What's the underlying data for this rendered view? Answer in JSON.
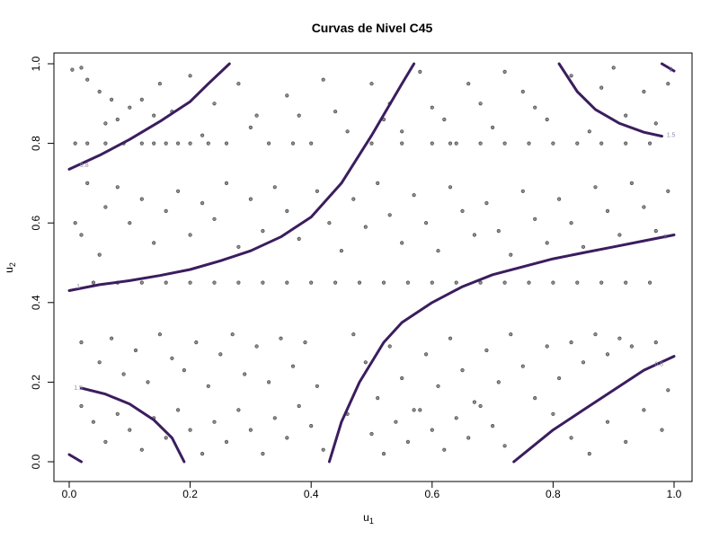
{
  "chart_data": {
    "type": "scatter",
    "title": "Curvas de Nivel C45",
    "xlabel": "u",
    "xlabel_sub": "1",
    "ylabel": "u",
    "ylabel_sub": "2",
    "xlim": [
      0,
      1
    ],
    "ylim": [
      0,
      1
    ],
    "xticks": [
      "0.0",
      "0.2",
      "0.4",
      "0.6",
      "0.8",
      "1.0"
    ],
    "yticks": [
      "0.0",
      "0.2",
      "0.4",
      "0.6",
      "0.8",
      "1.0"
    ],
    "grid": false,
    "point_color": "#333333",
    "contour_color": "#3b1d5e",
    "contours": [
      {
        "level": "1",
        "points": [
          [
            0,
            0.43
          ],
          [
            0.05,
            0.445
          ],
          [
            0.1,
            0.455
          ],
          [
            0.15,
            0.468
          ],
          [
            0.2,
            0.483
          ],
          [
            0.25,
            0.505
          ],
          [
            0.3,
            0.53
          ],
          [
            0.35,
            0.565
          ],
          [
            0.4,
            0.615
          ],
          [
            0.45,
            0.7
          ],
          [
            0.5,
            0.82
          ],
          [
            0.55,
            0.95
          ],
          [
            0.57,
            1.0
          ]
        ]
      },
      {
        "level": "1",
        "points": [
          [
            0.43,
            0
          ],
          [
            0.45,
            0.1
          ],
          [
            0.48,
            0.2
          ],
          [
            0.52,
            0.3
          ],
          [
            0.55,
            0.35
          ],
          [
            0.6,
            0.4
          ],
          [
            0.65,
            0.44
          ],
          [
            0.7,
            0.47
          ],
          [
            0.75,
            0.49
          ],
          [
            0.8,
            0.51
          ],
          [
            0.85,
            0.525
          ],
          [
            0.9,
            0.54
          ],
          [
            0.95,
            0.555
          ],
          [
            1.0,
            0.57
          ]
        ]
      },
      {
        "level": "0.8",
        "points": [
          [
            0,
            0.735
          ],
          [
            0.05,
            0.77
          ],
          [
            0.1,
            0.81
          ],
          [
            0.15,
            0.855
          ],
          [
            0.2,
            0.905
          ],
          [
            0.23,
            0.95
          ],
          [
            0.265,
            1.0
          ]
        ]
      },
      {
        "level": "0.8",
        "points": [
          [
            0.735,
            0
          ],
          [
            0.8,
            0.08
          ],
          [
            0.85,
            0.13
          ],
          [
            0.9,
            0.18
          ],
          [
            0.95,
            0.23
          ],
          [
            1.0,
            0.265
          ]
        ]
      },
      {
        "level": "1.5",
        "points": [
          [
            0.02,
            0.185
          ],
          [
            0.06,
            0.17
          ],
          [
            0.1,
            0.145
          ],
          [
            0.14,
            0.105
          ],
          [
            0.17,
            0.06
          ],
          [
            0.19,
            0.0
          ]
        ]
      },
      {
        "level": "1.5",
        "points": [
          [
            0.81,
            1.0
          ],
          [
            0.84,
            0.93
          ],
          [
            0.87,
            0.885
          ],
          [
            0.91,
            0.85
          ],
          [
            0.95,
            0.828
          ],
          [
            0.98,
            0.818
          ]
        ]
      },
      {
        "level": "2",
        "points": [
          [
            0,
            0.018
          ],
          [
            0.02,
            0.0
          ]
        ]
      },
      {
        "level": "2",
        "points": [
          [
            0.98,
            1.0
          ],
          [
            1.0,
            0.982
          ]
        ]
      }
    ],
    "contour_labels": [
      {
        "text": "0.8",
        "x": 0.025,
        "y": 0.745
      },
      {
        "text": "1",
        "x": 0.015,
        "y": 0.44
      },
      {
        "text": "1.5",
        "x": 0.015,
        "y": 0.185
      },
      {
        "text": "1",
        "x": 0.985,
        "y": 0.565
      },
      {
        "text": "0.8",
        "x": 0.975,
        "y": 0.245
      },
      {
        "text": "1.5",
        "x": 0.995,
        "y": 0.82
      },
      {
        "text": "2",
        "x": 0.995,
        "y": 0.985
      }
    ],
    "points": [
      [
        0.005,
        0.985
      ],
      [
        0.02,
        0.99
      ],
      [
        0.03,
        0.96
      ],
      [
        0.05,
        0.93
      ],
      [
        0.06,
        0.85
      ],
      [
        0.07,
        0.91
      ],
      [
        0.08,
        0.86
      ],
      [
        0.1,
        0.89
      ],
      [
        0.12,
        0.91
      ],
      [
        0.14,
        0.87
      ],
      [
        0.15,
        0.95
      ],
      [
        0.17,
        0.88
      ],
      [
        0.2,
        0.97
      ],
      [
        0.22,
        0.82
      ],
      [
        0.24,
        0.9
      ],
      [
        0.28,
        0.95
      ],
      [
        0.3,
        0.84
      ],
      [
        0.31,
        0.87
      ],
      [
        0.36,
        0.92
      ],
      [
        0.37,
        0.8
      ],
      [
        0.38,
        0.87
      ],
      [
        0.42,
        0.96
      ],
      [
        0.44,
        0.88
      ],
      [
        0.46,
        0.83
      ],
      [
        0.5,
        0.95
      ],
      [
        0.52,
        0.86
      ],
      [
        0.53,
        0.9
      ],
      [
        0.55,
        0.83
      ],
      [
        0.58,
        0.98
      ],
      [
        0.6,
        0.89
      ],
      [
        0.62,
        0.86
      ],
      [
        0.63,
        0.8
      ],
      [
        0.66,
        0.95
      ],
      [
        0.68,
        0.9
      ],
      [
        0.7,
        0.84
      ],
      [
        0.72,
        0.98
      ],
      [
        0.75,
        0.93
      ],
      [
        0.77,
        0.89
      ],
      [
        0.79,
        0.86
      ],
      [
        0.83,
        0.97
      ],
      [
        0.86,
        0.83
      ],
      [
        0.88,
        0.94
      ],
      [
        0.9,
        0.99
      ],
      [
        0.92,
        0.87
      ],
      [
        0.95,
        0.93
      ],
      [
        0.97,
        0.85
      ],
      [
        0.99,
        0.95
      ],
      [
        0.01,
        0.8
      ],
      [
        0.03,
        0.8
      ],
      [
        0.06,
        0.8
      ],
      [
        0.09,
        0.8
      ],
      [
        0.12,
        0.8
      ],
      [
        0.14,
        0.8
      ],
      [
        0.16,
        0.8
      ],
      [
        0.18,
        0.8
      ],
      [
        0.2,
        0.8
      ],
      [
        0.23,
        0.8
      ],
      [
        0.26,
        0.8
      ],
      [
        0.33,
        0.8
      ],
      [
        0.4,
        0.8
      ],
      [
        0.5,
        0.8
      ],
      [
        0.55,
        0.8
      ],
      [
        0.6,
        0.8
      ],
      [
        0.64,
        0.8
      ],
      [
        0.68,
        0.8
      ],
      [
        0.72,
        0.8
      ],
      [
        0.76,
        0.8
      ],
      [
        0.8,
        0.8
      ],
      [
        0.84,
        0.8
      ],
      [
        0.88,
        0.8
      ],
      [
        0.92,
        0.8
      ],
      [
        0.96,
        0.8
      ],
      [
        0.03,
        0.7
      ],
      [
        0.06,
        0.64
      ],
      [
        0.08,
        0.69
      ],
      [
        0.1,
        0.6
      ],
      [
        0.12,
        0.66
      ],
      [
        0.14,
        0.55
      ],
      [
        0.16,
        0.63
      ],
      [
        0.18,
        0.68
      ],
      [
        0.2,
        0.57
      ],
      [
        0.22,
        0.65
      ],
      [
        0.24,
        0.61
      ],
      [
        0.26,
        0.7
      ],
      [
        0.28,
        0.54
      ],
      [
        0.3,
        0.66
      ],
      [
        0.32,
        0.58
      ],
      [
        0.34,
        0.69
      ],
      [
        0.36,
        0.63
      ],
      [
        0.38,
        0.56
      ],
      [
        0.41,
        0.68
      ],
      [
        0.43,
        0.6
      ],
      [
        0.45,
        0.53
      ],
      [
        0.47,
        0.66
      ],
      [
        0.49,
        0.59
      ],
      [
        0.51,
        0.7
      ],
      [
        0.53,
        0.62
      ],
      [
        0.55,
        0.55
      ],
      [
        0.57,
        0.67
      ],
      [
        0.59,
        0.6
      ],
      [
        0.61,
        0.53
      ],
      [
        0.63,
        0.69
      ],
      [
        0.65,
        0.63
      ],
      [
        0.67,
        0.57
      ],
      [
        0.69,
        0.65
      ],
      [
        0.71,
        0.58
      ],
      [
        0.73,
        0.52
      ],
      [
        0.75,
        0.68
      ],
      [
        0.77,
        0.61
      ],
      [
        0.79,
        0.55
      ],
      [
        0.81,
        0.66
      ],
      [
        0.83,
        0.6
      ],
      [
        0.85,
        0.54
      ],
      [
        0.87,
        0.69
      ],
      [
        0.89,
        0.63
      ],
      [
        0.91,
        0.57
      ],
      [
        0.93,
        0.7
      ],
      [
        0.95,
        0.64
      ],
      [
        0.97,
        0.58
      ],
      [
        0.99,
        0.68
      ],
      [
        0.02,
        0.57
      ],
      [
        0.05,
        0.52
      ],
      [
        0.01,
        0.6
      ],
      [
        0.04,
        0.45
      ],
      [
        0.08,
        0.45
      ],
      [
        0.12,
        0.45
      ],
      [
        0.16,
        0.45
      ],
      [
        0.2,
        0.45
      ],
      [
        0.24,
        0.45
      ],
      [
        0.28,
        0.45
      ],
      [
        0.32,
        0.45
      ],
      [
        0.36,
        0.45
      ],
      [
        0.4,
        0.45
      ],
      [
        0.44,
        0.45
      ],
      [
        0.48,
        0.45
      ],
      [
        0.52,
        0.45
      ],
      [
        0.56,
        0.45
      ],
      [
        0.6,
        0.45
      ],
      [
        0.64,
        0.45
      ],
      [
        0.68,
        0.45
      ],
      [
        0.72,
        0.45
      ],
      [
        0.76,
        0.45
      ],
      [
        0.8,
        0.45
      ],
      [
        0.84,
        0.45
      ],
      [
        0.88,
        0.45
      ],
      [
        0.92,
        0.45
      ],
      [
        0.96,
        0.45
      ],
      [
        0.02,
        0.3
      ],
      [
        0.05,
        0.25
      ],
      [
        0.07,
        0.31
      ],
      [
        0.09,
        0.22
      ],
      [
        0.11,
        0.28
      ],
      [
        0.13,
        0.2
      ],
      [
        0.15,
        0.32
      ],
      [
        0.17,
        0.26
      ],
      [
        0.19,
        0.23
      ],
      [
        0.21,
        0.3
      ],
      [
        0.23,
        0.19
      ],
      [
        0.25,
        0.27
      ],
      [
        0.27,
        0.32
      ],
      [
        0.29,
        0.22
      ],
      [
        0.31,
        0.29
      ],
      [
        0.33,
        0.2
      ],
      [
        0.35,
        0.31
      ],
      [
        0.37,
        0.24
      ],
      [
        0.39,
        0.3
      ],
      [
        0.41,
        0.19
      ],
      [
        0.47,
        0.32
      ],
      [
        0.49,
        0.25
      ],
      [
        0.51,
        0.16
      ],
      [
        0.53,
        0.29
      ],
      [
        0.55,
        0.21
      ],
      [
        0.57,
        0.13
      ],
      [
        0.59,
        0.27
      ],
      [
        0.61,
        0.19
      ],
      [
        0.63,
        0.31
      ],
      [
        0.65,
        0.23
      ],
      [
        0.67,
        0.15
      ],
      [
        0.69,
        0.28
      ],
      [
        0.71,
        0.2
      ],
      [
        0.73,
        0.32
      ],
      [
        0.75,
        0.24
      ],
      [
        0.77,
        0.16
      ],
      [
        0.79,
        0.29
      ],
      [
        0.81,
        0.21
      ],
      [
        0.83,
        0.3
      ],
      [
        0.85,
        0.25
      ],
      [
        0.87,
        0.32
      ],
      [
        0.89,
        0.27
      ],
      [
        0.91,
        0.31
      ],
      [
        0.93,
        0.29
      ],
      [
        0.97,
        0.3
      ],
      [
        0.99,
        0.18
      ],
      [
        0.02,
        0.14
      ],
      [
        0.04,
        0.1
      ],
      [
        0.06,
        0.05
      ],
      [
        0.08,
        0.12
      ],
      [
        0.1,
        0.08
      ],
      [
        0.12,
        0.03
      ],
      [
        0.14,
        0.11
      ],
      [
        0.16,
        0.06
      ],
      [
        0.18,
        0.13
      ],
      [
        0.2,
        0.08
      ],
      [
        0.22,
        0.02
      ],
      [
        0.24,
        0.1
      ],
      [
        0.26,
        0.05
      ],
      [
        0.28,
        0.13
      ],
      [
        0.3,
        0.08
      ],
      [
        0.32,
        0.02
      ],
      [
        0.34,
        0.11
      ],
      [
        0.36,
        0.06
      ],
      [
        0.38,
        0.14
      ],
      [
        0.4,
        0.09
      ],
      [
        0.42,
        0.03
      ],
      [
        0.46,
        0.12
      ],
      [
        0.5,
        0.07
      ],
      [
        0.52,
        0.02
      ],
      [
        0.54,
        0.1
      ],
      [
        0.56,
        0.05
      ],
      [
        0.58,
        0.13
      ],
      [
        0.6,
        0.08
      ],
      [
        0.62,
        0.03
      ],
      [
        0.64,
        0.11
      ],
      [
        0.66,
        0.06
      ],
      [
        0.68,
        0.14
      ],
      [
        0.7,
        0.09
      ],
      [
        0.72,
        0.04
      ],
      [
        0.8,
        0.12
      ],
      [
        0.83,
        0.06
      ],
      [
        0.86,
        0.02
      ],
      [
        0.89,
        0.1
      ],
      [
        0.92,
        0.05
      ],
      [
        0.95,
        0.13
      ],
      [
        0.98,
        0.08
      ]
    ]
  }
}
